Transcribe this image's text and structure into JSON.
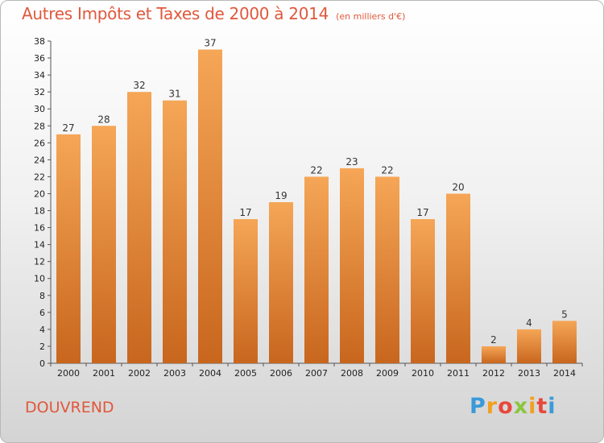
{
  "chart_data": {
    "type": "bar",
    "title": "Autres Impôts et Taxes de 2000 à 2014",
    "subtitle": "(en milliers d'€)",
    "categories": [
      "2000",
      "2001",
      "2002",
      "2003",
      "2004",
      "2005",
      "2006",
      "2007",
      "2008",
      "2009",
      "2010",
      "2011",
      "2012",
      "2013",
      "2014"
    ],
    "values": [
      27,
      28,
      32,
      31,
      37,
      17,
      19,
      22,
      23,
      22,
      17,
      20,
      2,
      4,
      5
    ],
    "ylim": [
      0,
      38
    ],
    "yticks": [
      0,
      2,
      4,
      6,
      8,
      10,
      12,
      14,
      16,
      18,
      20,
      22,
      24,
      26,
      28,
      30,
      32,
      34,
      36,
      38
    ],
    "grid": false,
    "bar_color_top": "#f5a656",
    "bar_color_bottom": "#c8661e"
  },
  "footer": {
    "commune": "DOUVREND"
  },
  "logo": {
    "text": "Proxiti"
  }
}
